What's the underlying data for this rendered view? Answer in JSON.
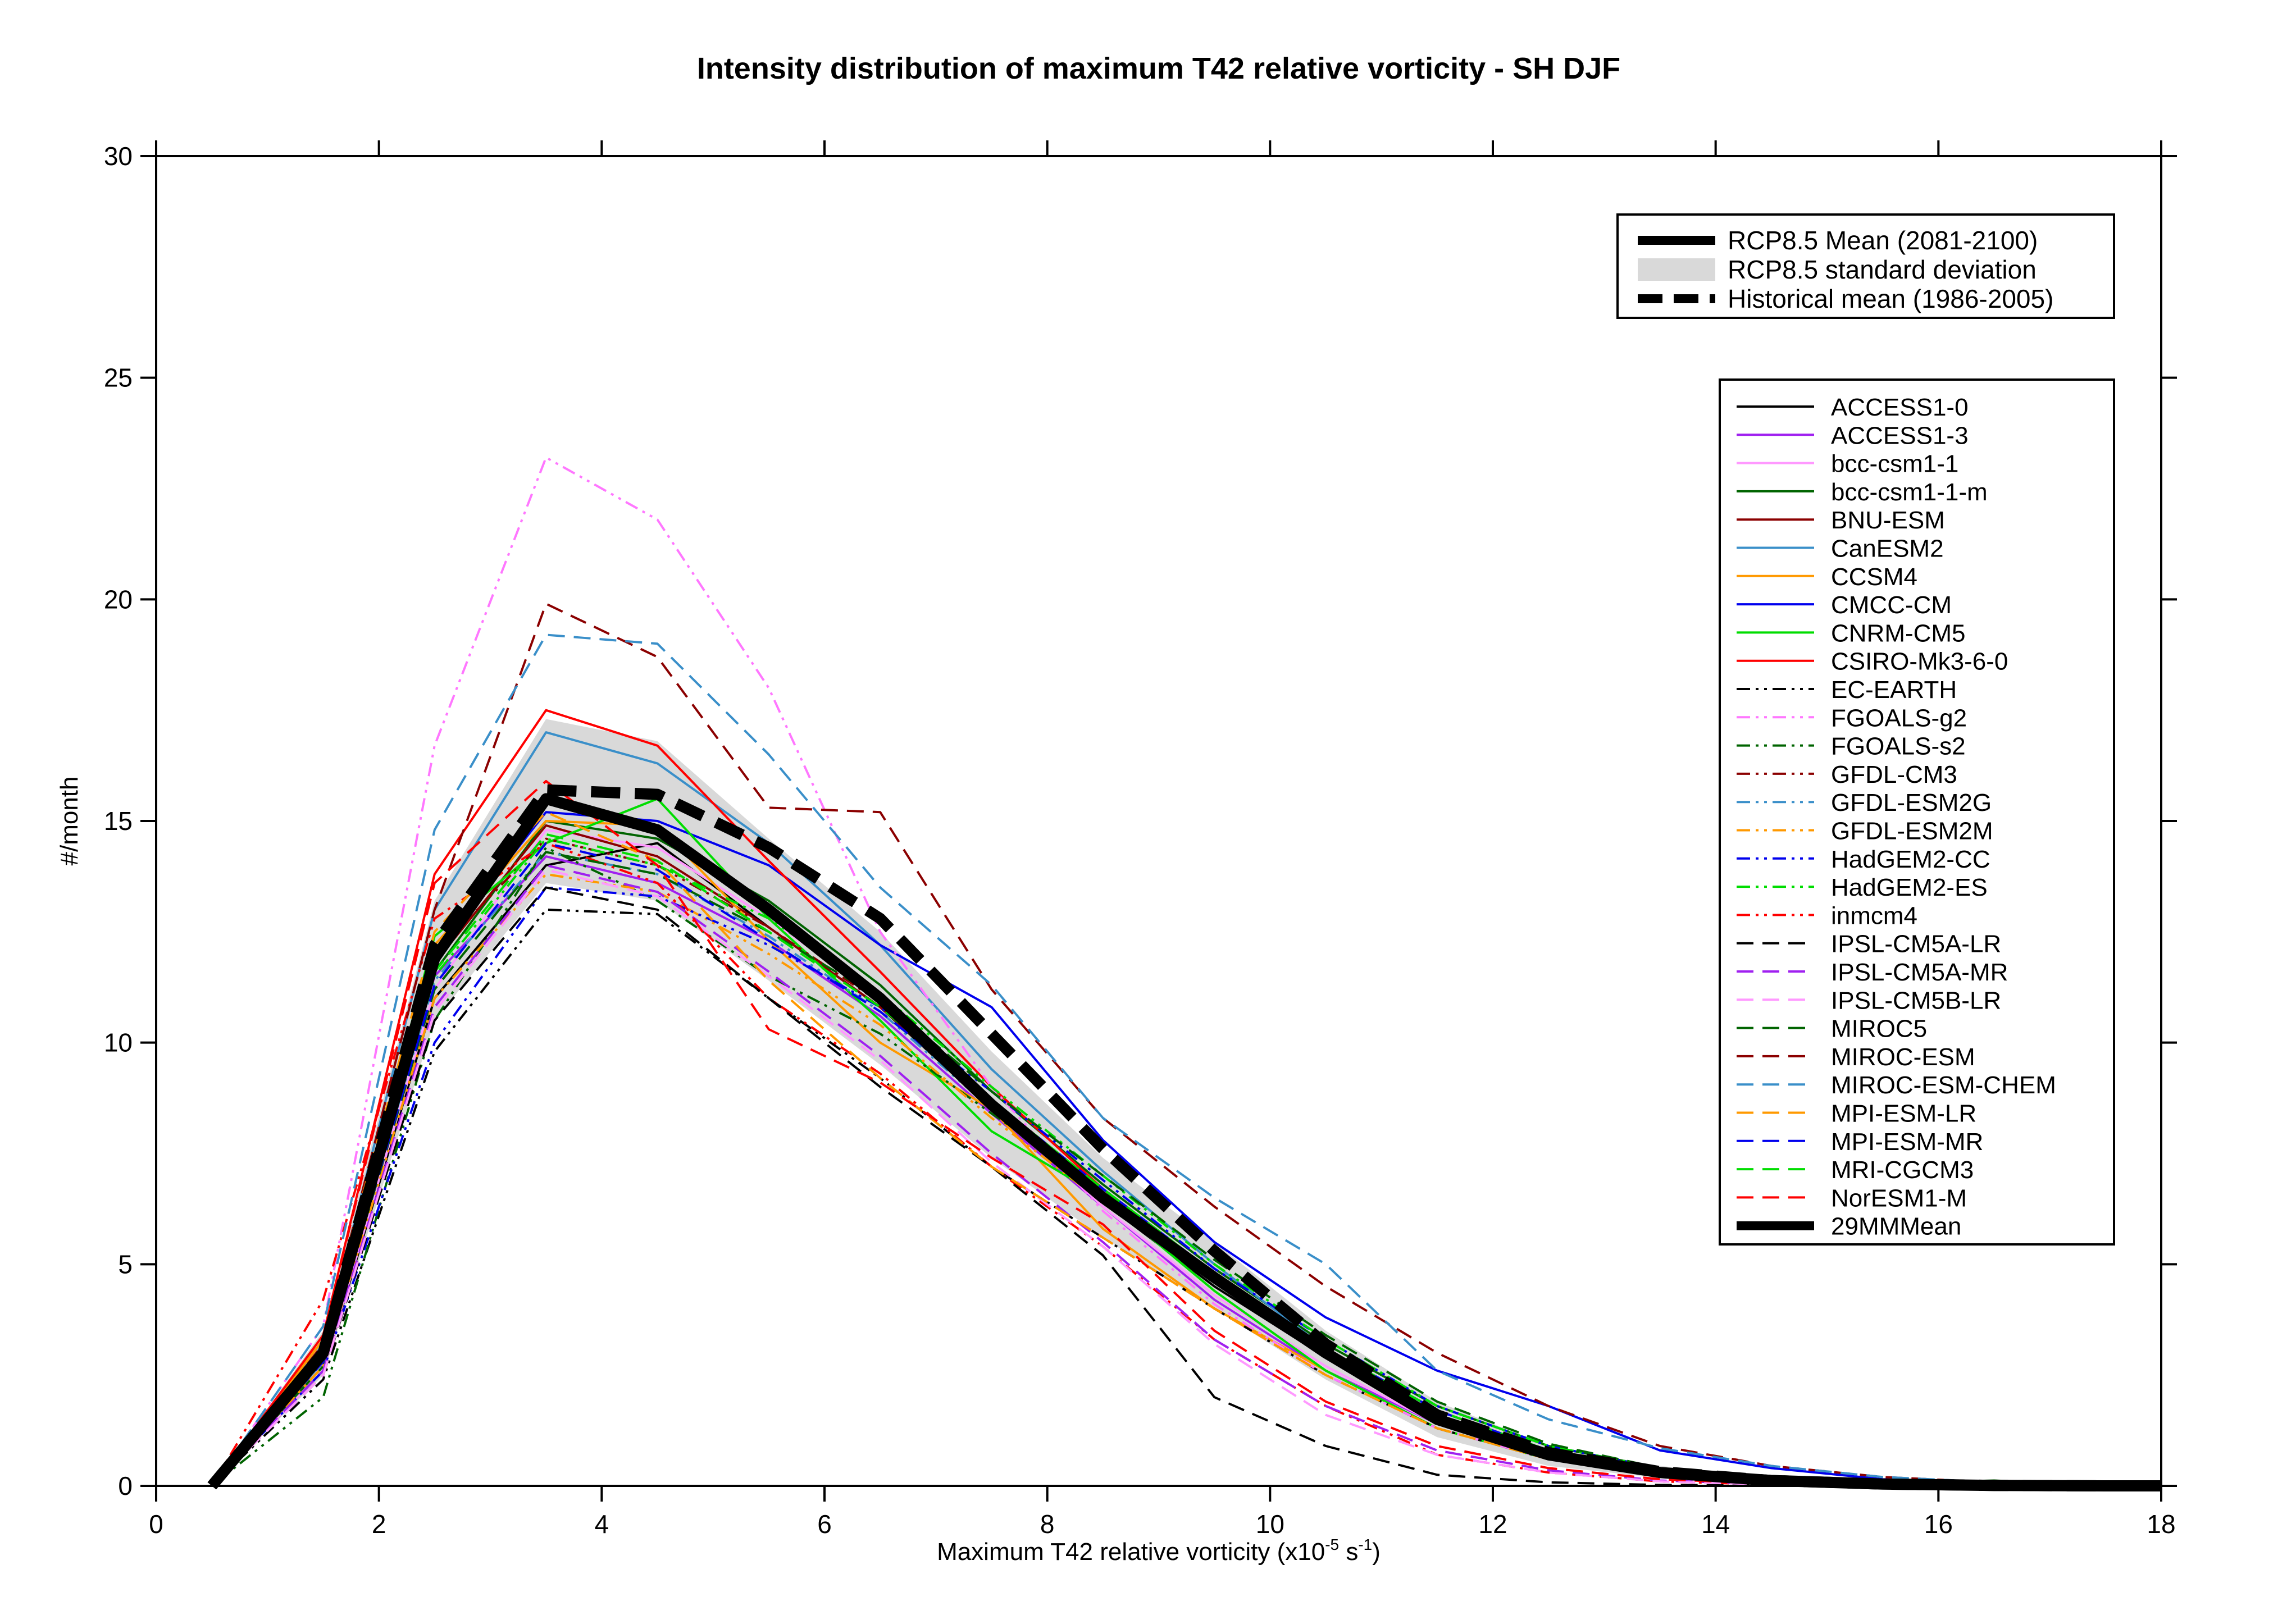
{
  "chart_data": {
    "type": "line",
    "title": "Intensity distribution of maximum T42 relative vorticity - SH DJF",
    "xlabel": {
      "prefix": "Maximum T42 relative vorticity (x10",
      "sup1": "-5",
      "mid": " s",
      "sup2": "-1",
      "suffix": ")"
    },
    "ylabel": "#/month",
    "xlim": [
      0,
      18
    ],
    "ylim": [
      0,
      30
    ],
    "x_ticks": [
      0,
      2,
      4,
      6,
      8,
      10,
      12,
      14,
      16,
      18
    ],
    "y_ticks": [
      0,
      5,
      10,
      15,
      20,
      25,
      30
    ],
    "grid": false,
    "x": [
      0.5,
      1.5,
      2.5,
      3.5,
      4.5,
      5.5,
      6.5,
      7.5,
      8.5,
      9.5,
      10.5,
      11.5,
      12.5,
      13.5,
      14.5,
      15.5,
      16.5,
      17.5,
      18
    ],
    "band": {
      "name": "RCP8.5 standard deviation",
      "color": "#d9d9d9",
      "lower": [
        0,
        2.5,
        10.5,
        13.6,
        13.2,
        11.4,
        9.5,
        7.4,
        5.6,
        4.0,
        2.4,
        1.1,
        0.45,
        0.18,
        0.06,
        0.02,
        0.005,
        0,
        0
      ],
      "upper": [
        0,
        3.5,
        13.2,
        17.3,
        16.8,
        14.6,
        12.5,
        9.8,
        7.4,
        5.5,
        3.5,
        1.9,
        0.9,
        0.45,
        0.2,
        0.06,
        0.02,
        0.005,
        0
      ]
    },
    "mean_rcp": {
      "name": "RCP8.5 Mean (2081-2100)",
      "values": [
        0,
        3.0,
        11.9,
        15.5,
        14.8,
        13.0,
        11.0,
        8.6,
        6.5,
        4.7,
        3.0,
        1.5,
        0.7,
        0.3,
        0.12,
        0.04,
        0.01,
        0,
        0
      ]
    },
    "mean_hist": {
      "name": "Historical mean (1986-2005)",
      "values": [
        0,
        3.0,
        12.2,
        15.7,
        15.6,
        14.4,
        12.8,
        10.2,
        7.6,
        5.3,
        3.2,
        1.6,
        0.75,
        0.32,
        0.12,
        0.04,
        0.01,
        0,
        0
      ]
    },
    "legend_top": {
      "placement": "top-right",
      "entries": [
        "RCP8.5 Mean (2081-2100)",
        "RCP8.5 standard deviation",
        "Historical mean (1986-2005)"
      ]
    },
    "legend_models": {
      "placement": "right"
    },
    "series": [
      {
        "name": "ACCESS1-0",
        "color": "#000000",
        "style": "solid",
        "values": [
          0,
          2.6,
          11.0,
          14.0,
          14.5,
          12.6,
          10.8,
          8.5,
          6.4,
          4.5,
          2.9,
          1.5,
          0.7,
          0.3,
          0.1,
          0.03,
          0.01,
          0,
          0
        ]
      },
      {
        "name": "ACCESS1-3",
        "color": "#a020f0",
        "style": "solid",
        "values": [
          0,
          2.8,
          11.5,
          14.2,
          13.6,
          12.3,
          10.6,
          8.4,
          6.3,
          4.2,
          2.6,
          1.4,
          0.6,
          0.25,
          0.1,
          0.03,
          0.01,
          0,
          0
        ]
      },
      {
        "name": "bcc-csm1-1",
        "color": "#ff99ff",
        "style": "solid",
        "values": [
          0,
          2.6,
          11.2,
          14.8,
          14.4,
          12.8,
          11.0,
          8.6,
          6.3,
          4.3,
          2.7,
          1.4,
          0.6,
          0.25,
          0.1,
          0.03,
          0.01,
          0,
          0
        ]
      },
      {
        "name": "bcc-csm1-1-m",
        "color": "#006400",
        "style": "solid",
        "values": [
          0,
          2.7,
          11.6,
          15.0,
          14.6,
          13.2,
          11.3,
          8.9,
          6.8,
          4.9,
          3.2,
          1.8,
          0.9,
          0.4,
          0.2,
          0.06,
          0.12,
          0.02,
          0
        ]
      },
      {
        "name": "BNU-ESM",
        "color": "#8b0000",
        "style": "solid",
        "values": [
          0,
          2.8,
          11.8,
          14.9,
          14.2,
          12.6,
          10.8,
          8.6,
          6.5,
          4.7,
          3.0,
          1.6,
          0.75,
          0.3,
          0.1,
          0.03,
          0.01,
          0,
          0
        ]
      },
      {
        "name": "CanESM2",
        "color": "#3a8fc9",
        "style": "solid",
        "values": [
          0,
          3.2,
          13.0,
          17.0,
          16.3,
          14.5,
          12.2,
          9.4,
          7.1,
          5.0,
          3.1,
          1.6,
          0.7,
          0.3,
          0.1,
          0.03,
          0.01,
          0,
          0
        ]
      },
      {
        "name": "CCSM4",
        "color": "#ff9900",
        "style": "solid",
        "values": [
          0,
          3.3,
          12.2,
          15.0,
          14.9,
          12.3,
          10.0,
          8.5,
          5.8,
          4.0,
          2.6,
          1.3,
          0.6,
          0.25,
          0.1,
          0.03,
          0.01,
          0,
          0
        ]
      },
      {
        "name": "CMCC-CM",
        "color": "#0000ee",
        "style": "solid",
        "values": [
          0,
          2.9,
          12.0,
          15.2,
          15.0,
          14.0,
          12.2,
          10.8,
          7.8,
          5.5,
          3.8,
          2.6,
          1.8,
          0.8,
          0.4,
          0.15,
          0.05,
          0.01,
          0
        ]
      },
      {
        "name": "CNRM-CM5",
        "color": "#00dd00",
        "style": "solid",
        "values": [
          0,
          2.9,
          12.4,
          14.5,
          15.5,
          12.8,
          10.5,
          8.0,
          6.5,
          4.4,
          2.6,
          1.3,
          0.6,
          0.25,
          0.1,
          0.03,
          0.01,
          0,
          0
        ]
      },
      {
        "name": "CSIRO-Mk3-6-0",
        "color": "#ff0000",
        "style": "solid",
        "values": [
          0,
          3.4,
          13.8,
          17.5,
          16.7,
          14.1,
          11.6,
          9.0,
          6.7,
          4.6,
          2.9,
          1.5,
          0.7,
          0.3,
          0.1,
          0.03,
          0.01,
          0,
          0
        ]
      },
      {
        "name": "EC-EARTH",
        "color": "#000000",
        "style": "dashdotdot",
        "values": [
          0,
          2.4,
          9.8,
          13.0,
          12.9,
          11.0,
          9.2,
          7.2,
          5.6,
          4.0,
          2.5,
          1.3,
          0.6,
          0.25,
          0.1,
          0.03,
          0.01,
          0,
          0
        ]
      },
      {
        "name": "FGOALS-g2",
        "color": "#ff77ff",
        "style": "dashdotdot",
        "values": [
          0,
          3.6,
          16.7,
          23.2,
          21.8,
          18.0,
          12.5,
          9.0,
          6.2,
          4.1,
          2.5,
          1.3,
          0.6,
          0.25,
          0.1,
          0.03,
          0.01,
          0,
          0
        ]
      },
      {
        "name": "FGOALS-s2",
        "color": "#006400",
        "style": "dashdotdot",
        "values": [
          0,
          2.0,
          10.5,
          14.4,
          13.2,
          11.5,
          10.2,
          8.4,
          6.7,
          4.6,
          3.0,
          1.7,
          0.8,
          0.35,
          0.12,
          0.04,
          0.01,
          0,
          0
        ]
      },
      {
        "name": "GFDL-CM3",
        "color": "#8b0000",
        "style": "dashdotdot",
        "values": [
          0,
          3.1,
          12.0,
          14.6,
          14.0,
          12.6,
          10.9,
          8.7,
          6.7,
          4.8,
          3.1,
          1.7,
          0.8,
          0.35,
          0.12,
          0.04,
          0.01,
          0,
          0
        ]
      },
      {
        "name": "GFDL-ESM2G",
        "color": "#3a8fc9",
        "style": "dashdotdot",
        "values": [
          0,
          2.8,
          11.4,
          14.3,
          13.8,
          12.4,
          10.7,
          8.5,
          6.6,
          4.8,
          3.1,
          1.7,
          0.8,
          0.35,
          0.12,
          0.04,
          0.01,
          0,
          0
        ]
      },
      {
        "name": "GFDL-ESM2M",
        "color": "#ff9900",
        "style": "dashdotdot",
        "values": [
          0,
          2.7,
          11.0,
          13.8,
          13.4,
          12.0,
          10.4,
          8.3,
          6.4,
          4.6,
          2.9,
          1.6,
          0.7,
          0.3,
          0.1,
          0.03,
          0.01,
          0,
          0
        ]
      },
      {
        "name": "HadGEM2-CC",
        "color": "#0000ee",
        "style": "dashdotdot",
        "values": [
          0,
          2.6,
          10.0,
          13.5,
          13.3,
          12.2,
          10.8,
          8.9,
          6.9,
          4.9,
          3.3,
          1.8,
          0.9,
          0.4,
          0.15,
          0.05,
          0.01,
          0,
          0
        ]
      },
      {
        "name": "HadGEM2-ES",
        "color": "#00dd00",
        "style": "dashdotdot",
        "values": [
          0,
          2.9,
          11.5,
          14.6,
          14.0,
          12.8,
          11.1,
          9.0,
          7.0,
          5.0,
          3.3,
          1.8,
          0.9,
          0.4,
          0.15,
          0.05,
          0.01,
          0,
          0
        ]
      },
      {
        "name": "inmcm4",
        "color": "#ff0000",
        "style": "dashdotdot",
        "values": [
          0,
          4.2,
          12.8,
          14.5,
          13.6,
          11.0,
          9.3,
          7.2,
          5.4,
          3.3,
          1.8,
          0.7,
          0.3,
          0.1,
          0.03,
          0.01,
          0,
          0,
          0
        ]
      },
      {
        "name": "IPSL-CM5A-LR",
        "color": "#000000",
        "style": "dashed",
        "values": [
          0,
          2.5,
          10.5,
          13.5,
          13.0,
          11.0,
          9.0,
          7.2,
          5.2,
          2.0,
          0.9,
          0.25,
          0.08,
          0.02,
          0.01,
          0,
          0,
          0,
          0
        ]
      },
      {
        "name": "IPSL-CM5A-MR",
        "color": "#a020f0",
        "style": "dashed",
        "values": [
          0,
          2.6,
          10.8,
          14.0,
          13.4,
          11.6,
          9.7,
          7.5,
          5.5,
          3.3,
          1.8,
          0.8,
          0.35,
          0.12,
          0.04,
          0.01,
          0,
          0,
          0
        ]
      },
      {
        "name": "IPSL-CM5B-LR",
        "color": "#ff99ff",
        "style": "dashed",
        "values": [
          0,
          2.5,
          10.7,
          13.9,
          13.3,
          11.5,
          9.6,
          7.3,
          5.4,
          3.2,
          1.6,
          0.7,
          0.3,
          0.1,
          0.03,
          0.01,
          0,
          0,
          0
        ]
      },
      {
        "name": "MIROC5",
        "color": "#006400",
        "style": "dashed",
        "values": [
          0,
          2.8,
          11.2,
          14.3,
          13.8,
          12.5,
          11.0,
          8.9,
          7.0,
          5.1,
          3.4,
          1.9,
          0.95,
          0.4,
          0.15,
          0.05,
          0.01,
          0,
          0
        ]
      },
      {
        "name": "MIROC-ESM",
        "color": "#8b0000",
        "style": "dashed",
        "values": [
          0,
          3.2,
          13.0,
          19.9,
          18.7,
          15.3,
          15.2,
          11.2,
          8.3,
          6.3,
          4.5,
          3.0,
          1.8,
          0.9,
          0.45,
          0.2,
          0.08,
          0.02,
          0
        ]
      },
      {
        "name": "MIROC-ESM-CHEM",
        "color": "#3a8fc9",
        "style": "dashed",
        "values": [
          0,
          3.6,
          14.8,
          19.2,
          19.0,
          16.5,
          13.5,
          11.3,
          8.3,
          6.5,
          5.0,
          2.6,
          1.5,
          0.85,
          0.45,
          0.2,
          0.08,
          0.02,
          0
        ]
      },
      {
        "name": "MPI-ESM-LR",
        "color": "#ff9900",
        "style": "dashed",
        "values": [
          0,
          3.3,
          12.5,
          15.2,
          14.1,
          11.4,
          9.2,
          7.2,
          5.6,
          4.0,
          2.5,
          1.3,
          0.6,
          0.25,
          0.1,
          0.03,
          0.01,
          0,
          0
        ]
      },
      {
        "name": "MPI-ESM-MR",
        "color": "#0000ee",
        "style": "dashed",
        "values": [
          0,
          2.8,
          11.3,
          14.5,
          13.9,
          12.3,
          10.7,
          8.7,
          6.7,
          4.8,
          3.1,
          1.7,
          0.8,
          0.35,
          0.12,
          0.04,
          0.01,
          0,
          0
        ]
      },
      {
        "name": "MRI-CGCM3",
        "color": "#00dd00",
        "style": "dashed",
        "values": [
          0,
          2.9,
          11.6,
          14.7,
          14.1,
          12.5,
          10.8,
          8.7,
          6.7,
          4.8,
          3.1,
          1.7,
          0.8,
          0.35,
          0.12,
          0.04,
          0.01,
          0,
          0
        ]
      },
      {
        "name": "NorESM1-M",
        "color": "#ff0000",
        "style": "dashed",
        "values": [
          0,
          3.4,
          13.6,
          15.9,
          14.0,
          10.3,
          9.1,
          7.4,
          5.9,
          3.5,
          1.9,
          0.9,
          0.4,
          0.15,
          0.05,
          0.01,
          0,
          0,
          0
        ]
      },
      {
        "name": "29MMMean",
        "color": "#000000",
        "style": "thick",
        "values": [
          0,
          3.0,
          11.9,
          15.5,
          14.8,
          13.0,
          11.0,
          8.6,
          6.5,
          4.7,
          3.0,
          1.5,
          0.7,
          0.3,
          0.12,
          0.04,
          0.01,
          0,
          0
        ]
      }
    ]
  }
}
